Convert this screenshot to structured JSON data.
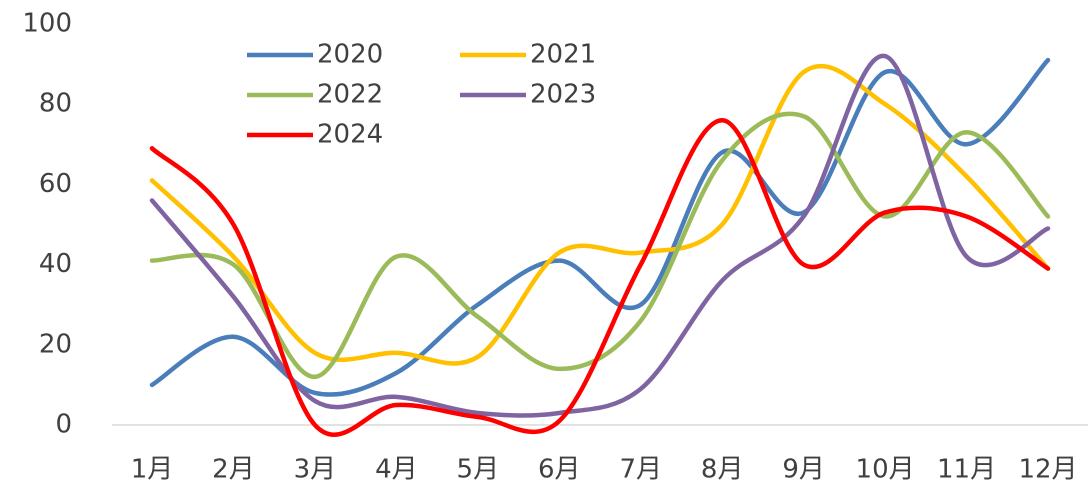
{
  "chart_data": {
    "type": "line",
    "categories": [
      "1月",
      "2月",
      "3月",
      "4月",
      "5月",
      "6月",
      "7月",
      "8月",
      "9月",
      "10月",
      "11月",
      "12月"
    ],
    "series": [
      {
        "name": "2020",
        "color": "#4a7ebb",
        "values": [
          10,
          22,
          8,
          13,
          30,
          41,
          30,
          68,
          53,
          88,
          70,
          91
        ]
      },
      {
        "name": "2021",
        "color": "#ffc000",
        "values": [
          61,
          42,
          18,
          18,
          17,
          43,
          43,
          50,
          88,
          80,
          62,
          39
        ]
      },
      {
        "name": "2022",
        "color": "#9bbb59",
        "values": [
          41,
          40,
          12,
          42,
          27,
          14,
          26,
          66,
          77,
          52,
          73,
          52
        ]
      },
      {
        "name": "2023",
        "color": "#8064a2",
        "values": [
          56,
          32,
          6,
          7,
          3,
          3,
          9,
          36,
          52,
          92,
          42,
          49
        ]
      },
      {
        "name": "2024",
        "color": "#ff0000",
        "values": [
          69,
          50,
          0,
          5,
          2,
          1,
          40,
          76,
          40,
          53,
          52,
          39
        ]
      }
    ],
    "ylim": [
      0,
      100
    ],
    "yticks": [
      0,
      20,
      40,
      60,
      80,
      100
    ],
    "grid": false
  }
}
